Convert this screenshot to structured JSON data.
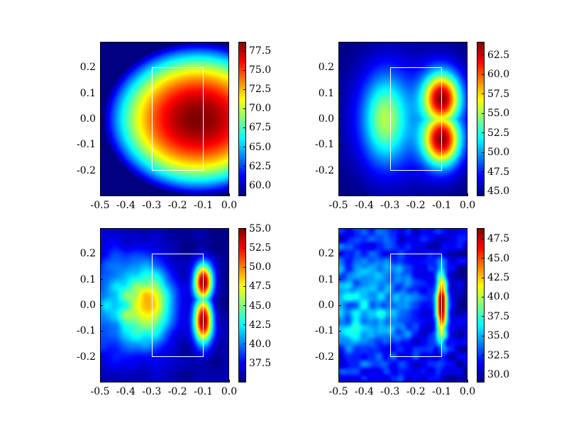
{
  "chart_data": [
    {
      "type": "heatmap",
      "panel": "top-left",
      "xlim": [
        -0.5,
        0.0
      ],
      "ylim": [
        -0.3,
        0.3
      ],
      "xticks": [
        "-0.5",
        "-0.4",
        "-0.3",
        "-0.2",
        "-0.1",
        "0.0"
      ],
      "xtick_values": [
        -0.5,
        -0.4,
        -0.3,
        -0.2,
        -0.1,
        0.0
      ],
      "yticks": [
        "0.2",
        "0.1",
        "0.0",
        "-0.1",
        "-0.2"
      ],
      "ytick_values": [
        0.2,
        0.1,
        0.0,
        -0.1,
        -0.2
      ],
      "rectangle": {
        "x": [
          -0.3,
          -0.1
        ],
        "y": [
          -0.2,
          0.2
        ]
      },
      "colorbar": {
        "range": [
          58.6,
          78.7
        ],
        "ticks": [
          "60.0",
          "62.5",
          "65.0",
          "67.5",
          "70.0",
          "72.5",
          "75.0",
          "77.5"
        ],
        "tick_values": [
          60,
          62.5,
          65,
          67.5,
          70,
          72.5,
          75,
          77.5
        ]
      },
      "colormap": "jet",
      "pattern": "single broad peak centered near (-0.12, 0.0)"
    },
    {
      "type": "heatmap",
      "panel": "top-right",
      "xlim": [
        -0.5,
        0.0
      ],
      "ylim": [
        -0.3,
        0.3
      ],
      "xticks": [
        "-0.5",
        "-0.4",
        "-0.3",
        "-0.2",
        "-0.1",
        "0.0"
      ],
      "xtick_values": [
        -0.5,
        -0.4,
        -0.3,
        -0.2,
        -0.1,
        0.0
      ],
      "yticks": [
        "0.2",
        "0.1",
        "0.0",
        "-0.1",
        "-0.2"
      ],
      "ytick_values": [
        0.2,
        0.1,
        0.0,
        -0.1,
        -0.2
      ],
      "rectangle": {
        "x": [
          -0.3,
          -0.1
        ],
        "y": [
          -0.2,
          0.2
        ]
      },
      "colorbar": {
        "range": [
          44.4,
          64.2
        ],
        "ticks": [
          "45.0",
          "47.5",
          "50.0",
          "52.5",
          "55.0",
          "57.5",
          "60.0",
          "62.5"
        ],
        "tick_values": [
          45,
          47.5,
          50,
          52.5,
          55,
          57.5,
          60,
          62.5
        ]
      },
      "colormap": "jet",
      "pattern": "two vertical peaks near x=-0.1 at y=+0.07 and -0.07, secondary lobe near x=-0.32"
    },
    {
      "type": "heatmap",
      "panel": "bottom-left",
      "xlim": [
        -0.5,
        0.0
      ],
      "ylim": [
        -0.3,
        0.3
      ],
      "xticks": [
        "-0.5",
        "-0.4",
        "-0.3",
        "-0.2",
        "-0.1",
        "0.0"
      ],
      "xtick_values": [
        -0.5,
        -0.4,
        -0.3,
        -0.2,
        -0.1,
        0.0
      ],
      "yticks": [
        "0.2",
        "0.1",
        "0.0",
        "-0.1",
        "-0.2"
      ],
      "ytick_values": [
        0.2,
        0.1,
        0.0,
        -0.1,
        -0.2
      ],
      "rectangle": {
        "x": [
          -0.3,
          -0.1
        ],
        "y": [
          -0.2,
          0.2
        ]
      },
      "colorbar": {
        "range": [
          35.0,
          55.1
        ],
        "ticks": [
          "37.5",
          "40.0",
          "42.5",
          "45.0",
          "47.5",
          "50.0",
          "52.5",
          "55.0"
        ],
        "tick_values": [
          37.5,
          40,
          42.5,
          45,
          47.5,
          50,
          52.5,
          55
        ]
      },
      "colormap": "jet",
      "pattern": "narrow ridge at x=-0.1 between y=-0.15 and 0.15"
    },
    {
      "type": "heatmap",
      "panel": "bottom-right",
      "xlim": [
        -0.5,
        0.0
      ],
      "ylim": [
        -0.3,
        0.3
      ],
      "xticks": [
        "-0.5",
        "-0.4",
        "-0.3",
        "-0.2",
        "-0.1",
        "0.0"
      ],
      "xtick_values": [
        -0.5,
        -0.4,
        -0.3,
        -0.2,
        -0.1,
        0.0
      ],
      "yticks": [
        "0.2",
        "0.1",
        "0.0",
        "-0.1",
        "-0.2"
      ],
      "ytick_values": [
        0.2,
        0.1,
        0.0,
        -0.1,
        -0.2
      ],
      "rectangle": {
        "x": [
          -0.3,
          -0.1
        ],
        "y": [
          -0.2,
          0.2
        ]
      },
      "colorbar": {
        "range": [
          29.0,
          48.9
        ],
        "ticks": [
          "30.0",
          "32.5",
          "35.0",
          "37.5",
          "40.0",
          "42.5",
          "45.0",
          "47.5"
        ],
        "tick_values": [
          30,
          32.5,
          35,
          37.5,
          40,
          42.5,
          45,
          47.5
        ]
      },
      "colormap": "jet",
      "pattern": "thin ridge at x=-0.1 between y=-0.12 and 0.12 with speckle"
    }
  ]
}
